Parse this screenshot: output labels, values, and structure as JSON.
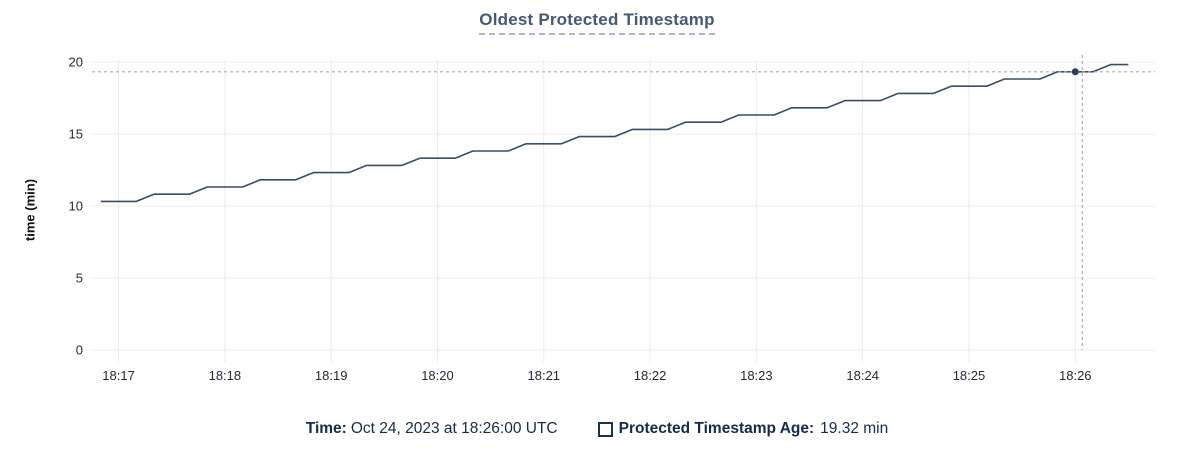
{
  "title": "Oldest Protected Timestamp",
  "y_axis_label": "time (min)",
  "tooltip": {
    "time_label": "Time:",
    "time_value": "Oct 24, 2023 at 18:26:00 UTC",
    "series_label": "Protected Timestamp Age:",
    "series_value": "19.32 min"
  },
  "colors": {
    "title": "#475872",
    "title_underline": "#a9b7c6",
    "line": "#3b4c66",
    "grid": "#ececec",
    "axis_text": "#242a33",
    "crosshair": "#9fb0bd",
    "legend_text": "#152b49",
    "highlight_dot": "#2c3d57"
  },
  "chart_data": {
    "type": "line",
    "title": "Oldest Protected Timestamp",
    "xlabel": "",
    "ylabel": "time (min)",
    "ylim": [
      0,
      20
    ],
    "y_ticks": [
      0,
      5,
      10,
      15,
      20
    ],
    "grid": true,
    "legend_position": "bottom",
    "x_domain_seconds": 600,
    "x_domain_start": "18:16:45",
    "x_ticks": [
      {
        "label": "18:17",
        "t": 15
      },
      {
        "label": "18:18",
        "t": 75
      },
      {
        "label": "18:19",
        "t": 135
      },
      {
        "label": "18:20",
        "t": 195
      },
      {
        "label": "18:21",
        "t": 255
      },
      {
        "label": "18:22",
        "t": 315
      },
      {
        "label": "18:23",
        "t": 375
      },
      {
        "label": "18:24",
        "t": 435
      },
      {
        "label": "18:25",
        "t": 495
      },
      {
        "label": "18:26",
        "t": 555
      }
    ],
    "series": [
      {
        "name": "Protected Timestamp Age",
        "unit": "min",
        "start_offset_seconds": 5,
        "interval_seconds": 10,
        "values": [
          10.32,
          10.32,
          10.32,
          10.82,
          10.82,
          10.82,
          11.32,
          11.32,
          11.32,
          11.82,
          11.82,
          11.82,
          12.32,
          12.32,
          12.32,
          12.82,
          12.82,
          12.82,
          13.32,
          13.32,
          13.32,
          13.82,
          13.82,
          13.82,
          14.32,
          14.32,
          14.32,
          14.82,
          14.82,
          14.82,
          15.32,
          15.32,
          15.32,
          15.82,
          15.82,
          15.82,
          16.32,
          16.32,
          16.32,
          16.82,
          16.82,
          16.82,
          17.32,
          17.32,
          17.32,
          17.82,
          17.82,
          17.82,
          18.32,
          18.32,
          18.32,
          18.82,
          18.82,
          18.82,
          19.32,
          19.32,
          19.32,
          19.82,
          19.82
        ]
      }
    ],
    "highlight_point": {
      "time": "18:26:00",
      "t": 555,
      "value": 19.32
    },
    "crosshair": {
      "t": 555,
      "value": 19.32
    }
  }
}
